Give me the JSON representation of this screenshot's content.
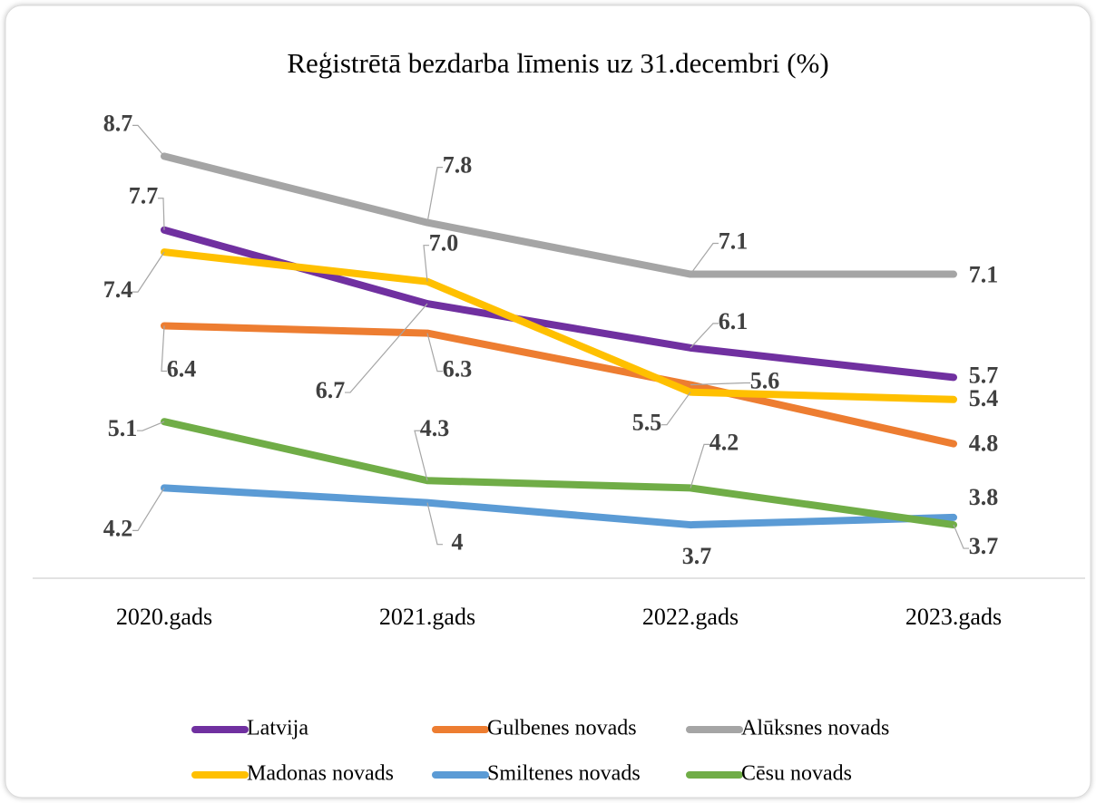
{
  "chart_data": {
    "type": "line",
    "title": "Reģistrētā bezdarba līmenis uz 31.decembri (%)",
    "categories": [
      "2020.gads",
      "2021.gads",
      "2022.gads",
      "2023.gads"
    ],
    "ylim": [
      3,
      9
    ],
    "series": [
      {
        "name": "Latvija",
        "color": "#7030a0",
        "values": [
          7.7,
          6.7,
          6.1,
          5.7
        ]
      },
      {
        "name": "Gulbenes novads",
        "color": "#ed7d31",
        "values": [
          6.4,
          6.3,
          5.6,
          4.8
        ]
      },
      {
        "name": "Alūksnes novads",
        "color": "#a5a5a5",
        "values": [
          8.7,
          7.8,
          7.1,
          7.1
        ]
      },
      {
        "name": "Madonas novads",
        "color": "#ffc000",
        "values": [
          7.4,
          7.0,
          5.5,
          5.4
        ],
        "value_labels": [
          "7.4",
          "7.0",
          "5.5",
          "5.4"
        ]
      },
      {
        "name": "Smiltenes novads",
        "color": "#5b9bd5",
        "values": [
          4.2,
          4.0,
          3.7,
          3.8
        ]
      },
      {
        "name": "Cēsu novads",
        "color": "#70ad47",
        "values": [
          5.1,
          4.3,
          4.2,
          3.7
        ]
      }
    ]
  }
}
